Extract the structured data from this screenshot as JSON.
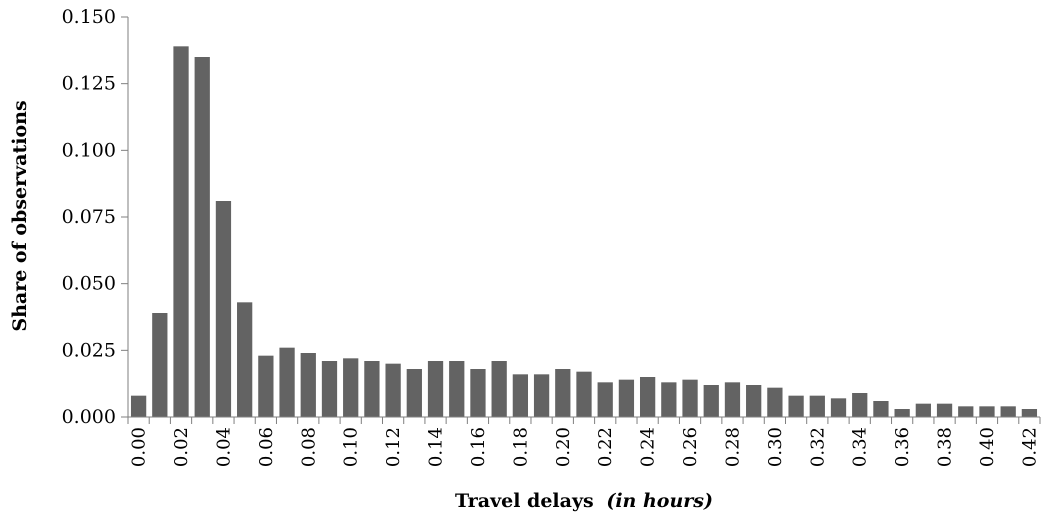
{
  "chart_data": {
    "type": "bar",
    "title": "",
    "xlabel": "Travel delays",
    "xlabel_italic_suffix": "(in hours)",
    "ylabel": "Share of observations",
    "ylim": [
      0,
      0.15
    ],
    "yticks": [
      "0.000",
      "0.025",
      "0.050",
      "0.075",
      "0.100",
      "0.125",
      "0.150"
    ],
    "xtick_labels": [
      "0.00",
      "0.02",
      "0.04",
      "0.06",
      "0.08",
      "0.10",
      "0.12",
      "0.14",
      "0.16",
      "0.18",
      "0.20",
      "0.22",
      "0.24",
      "0.26",
      "0.28",
      "0.30",
      "0.32",
      "0.34",
      "0.36",
      "0.38",
      "0.40",
      "0.42"
    ],
    "categories": [
      "0.00",
      "0.01",
      "0.02",
      "0.03",
      "0.04",
      "0.05",
      "0.06",
      "0.07",
      "0.08",
      "0.09",
      "0.10",
      "0.11",
      "0.12",
      "0.13",
      "0.14",
      "0.15",
      "0.16",
      "0.17",
      "0.18",
      "0.19",
      "0.20",
      "0.21",
      "0.22",
      "0.23",
      "0.24",
      "0.25",
      "0.26",
      "0.27",
      "0.28",
      "0.29",
      "0.30",
      "0.31",
      "0.32",
      "0.33",
      "0.34",
      "0.35",
      "0.36",
      "0.37",
      "0.38",
      "0.39",
      "0.40",
      "0.41",
      "0.42"
    ],
    "values": [
      0.008,
      0.039,
      0.139,
      0.135,
      0.081,
      0.043,
      0.023,
      0.026,
      0.024,
      0.021,
      0.022,
      0.021,
      0.02,
      0.018,
      0.021,
      0.021,
      0.018,
      0.021,
      0.016,
      0.016,
      0.018,
      0.017,
      0.013,
      0.014,
      0.015,
      0.013,
      0.014,
      0.012,
      0.013,
      0.012,
      0.011,
      0.008,
      0.008,
      0.007,
      0.009,
      0.006,
      0.003,
      0.005,
      0.005,
      0.004,
      0.004,
      0.004,
      0.003
    ],
    "grid": false,
    "legend": "none",
    "bar_color": "#636363",
    "axis_color": "#7f7f7f"
  }
}
